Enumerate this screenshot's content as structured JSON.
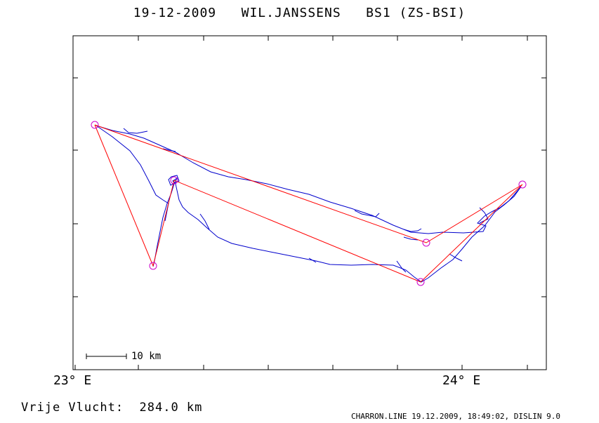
{
  "title": "19-12-2009   WIL.JANSSENS   BS1 (ZS-BSI)",
  "x_tick_labels": [
    "23° E",
    "24° E"
  ],
  "scale_bar_label": "10 km",
  "footer_left": "Vrije Vlucht:  284.0 km",
  "footer_right": "CHARRON.LINE 19.12.2009, 18:49:02, DISLIN 9.0",
  "colors": {
    "task_line": "#ff0000",
    "track": "#0000cc",
    "turnpoint": "#cc00cc",
    "frame": "#000000"
  }
}
